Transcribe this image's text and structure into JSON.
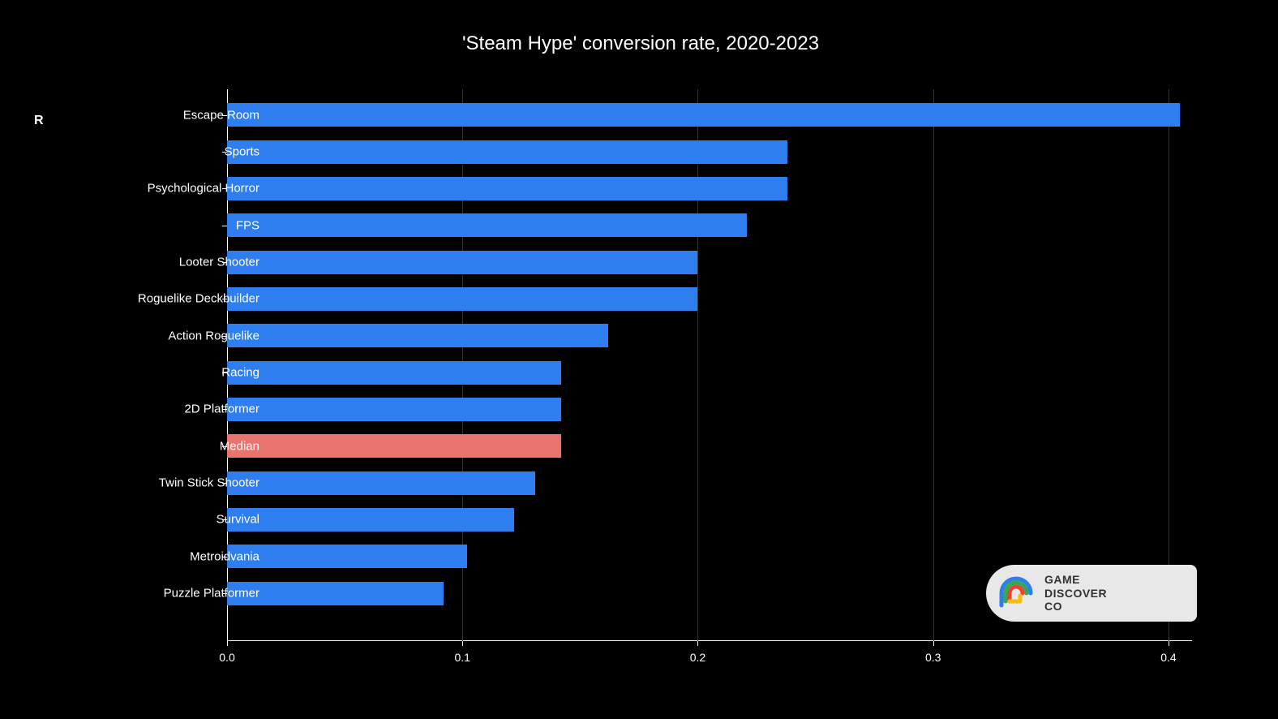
{
  "chart": {
    "type": "horizontal_bar",
    "title": "'Steam Hype' conversion rate, 2020-2023",
    "title_fontsize": 24,
    "title_color": "#ffffff",
    "background_color": "#000000",
    "bar_color_default": "#2f7ef0",
    "bar_color_highlight": "#e8746d",
    "grid_color": "#333333",
    "axis_color": "#ffffff",
    "label_color": "#ffffff",
    "label_fontsize": 15,
    "tick_fontsize": 14,
    "xlim": [
      0.0,
      0.41
    ],
    "xtick_step": 0.1,
    "xticks": [
      0.0,
      0.1,
      0.2,
      0.3,
      0.4
    ],
    "xtick_labels": [
      "0.0",
      "0.1",
      "0.2",
      "0.3",
      "0.4"
    ],
    "bar_height_ratio": 0.64,
    "categories": [
      "Escape Room",
      "Sports",
      "Psychological Horror",
      "FPS",
      "Looter Shooter",
      "Roguelike Deckbuilder",
      "Action Roguelike",
      "Racing",
      "2D Platformer",
      "Median",
      "Twin Stick Shooter",
      "Survival",
      "Metroidvania",
      "Puzzle Platformer"
    ],
    "values": [
      0.405,
      0.238,
      0.238,
      0.221,
      0.2,
      0.2,
      0.162,
      0.142,
      0.142,
      0.142,
      0.131,
      0.122,
      0.102,
      0.092
    ],
    "bar_colors": [
      "#2f7ef0",
      "#2f7ef0",
      "#2f7ef0",
      "#2f7ef0",
      "#2f7ef0",
      "#2f7ef0",
      "#2f7ef0",
      "#2f7ef0",
      "#2f7ef0",
      "#e8746d",
      "#2f7ef0",
      "#2f7ef0",
      "#2f7ef0",
      "#2f7ef0"
    ]
  },
  "stray_text": "R",
  "logo": {
    "line1": "GAME",
    "line2": "DISCOVER",
    "line3": "CO",
    "colors": {
      "blue": "#2f7ef0",
      "green": "#34a853",
      "red": "#ea4335",
      "yellow": "#fbbc04"
    },
    "background": "#e8e8e8",
    "text_color": "#333333"
  }
}
